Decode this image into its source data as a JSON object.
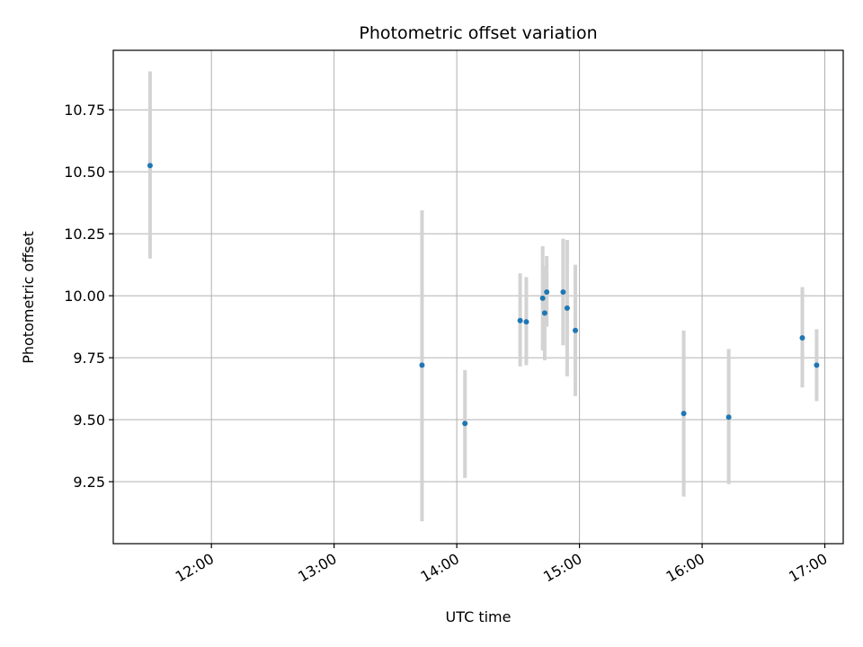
{
  "chart_data": {
    "type": "scatter",
    "title": "Photometric offset variation",
    "xlabel": "UTC time",
    "ylabel": "Photometric offset",
    "x_tick_labels": [
      "12:00",
      "13:00",
      "14:00",
      "15:00",
      "16:00",
      "17:00"
    ],
    "y_tick_labels": [
      "9.25",
      "9.50",
      "9.75",
      "10.00",
      "10.25",
      "10.50",
      "10.75"
    ],
    "y_ticks": [
      9.25,
      9.5,
      9.75,
      10.0,
      10.25,
      10.5,
      10.75
    ],
    "xlim": [
      "11:12",
      "17:09"
    ],
    "ylim": [
      9.0,
      10.99
    ],
    "grid": true,
    "colors": {
      "points": "#1f77b4",
      "errorbars": "#d3d3d3"
    },
    "points": [
      {
        "x": "11:30",
        "y": 10.525,
        "ylow": 10.15,
        "yhigh": 10.905
      },
      {
        "x": "13:43",
        "y": 9.72,
        "ylow": 9.09,
        "yhigh": 10.345
      },
      {
        "x": "14:04",
        "y": 9.485,
        "ylow": 9.265,
        "yhigh": 9.7
      },
      {
        "x": "14:31",
        "y": 9.9,
        "ylow": 9.715,
        "yhigh": 10.09
      },
      {
        "x": "14:34",
        "y": 9.895,
        "ylow": 9.72,
        "yhigh": 10.075
      },
      {
        "x": "14:42",
        "y": 9.99,
        "ylow": 9.78,
        "yhigh": 10.2
      },
      {
        "x": "14:43",
        "y": 9.93,
        "ylow": 9.74,
        "yhigh": 10.12
      },
      {
        "x": "14:44",
        "y": 10.015,
        "ylow": 9.875,
        "yhigh": 10.16
      },
      {
        "x": "14:52",
        "y": 10.015,
        "ylow": 9.8,
        "yhigh": 10.23
      },
      {
        "x": "14:54",
        "y": 9.95,
        "ylow": 9.675,
        "yhigh": 10.225
      },
      {
        "x": "14:58",
        "y": 9.86,
        "ylow": 9.595,
        "yhigh": 10.125
      },
      {
        "x": "15:51",
        "y": 9.525,
        "ylow": 9.19,
        "yhigh": 9.86
      },
      {
        "x": "16:13",
        "y": 9.51,
        "ylow": 9.24,
        "yhigh": 9.785
      },
      {
        "x": "16:49",
        "y": 9.83,
        "ylow": 9.63,
        "yhigh": 10.035
      },
      {
        "x": "16:56",
        "y": 9.72,
        "ylow": 9.575,
        "yhigh": 9.865
      }
    ]
  }
}
